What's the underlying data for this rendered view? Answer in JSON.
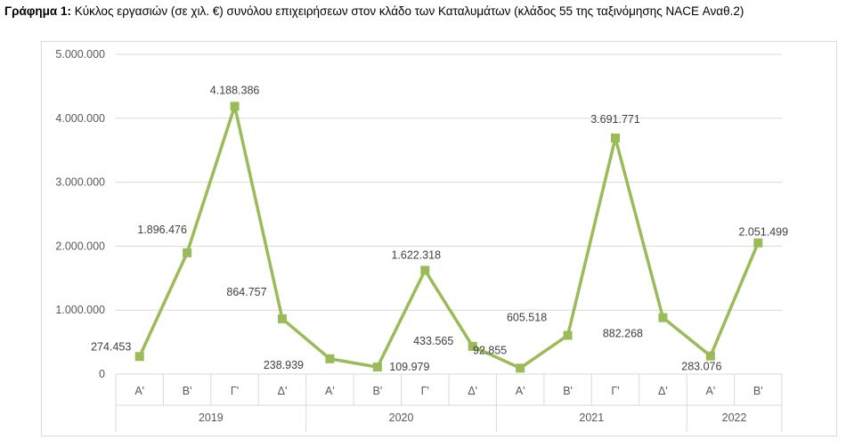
{
  "title": {
    "prefix": "Γράφημα 1:",
    "text": "Κύκλος εργασιών (σε χιλ. €) συνόλου επιχειρήσεων στον κλάδο των Καταλυμάτων (κλάδος 55 της ταξινόμησης NACE Αναθ.2)"
  },
  "chart_data": {
    "type": "line",
    "categories": [
      "Α'",
      "Β'",
      "Γ'",
      "Δ'",
      "Α'",
      "Β'",
      "Γ'",
      "Δ'",
      "Α'",
      "Β'",
      "Γ'",
      "Δ'",
      "Α'",
      "Β'"
    ],
    "groups": [
      {
        "label": "2019",
        "count": 4
      },
      {
        "label": "2020",
        "count": 4
      },
      {
        "label": "2021",
        "count": 4
      },
      {
        "label": "2022",
        "count": 2
      }
    ],
    "values": [
      274453,
      1896476,
      4188386,
      864757,
      238939,
      109979,
      1622318,
      433565,
      92855,
      605518,
      3691771,
      882268,
      283076,
      2051499
    ],
    "labels": [
      "274.453",
      "1.896.476",
      "4.188.386",
      "864.757",
      "238.939",
      "109.979",
      "1.622.318",
      "433.565",
      "92.855",
      "605.518",
      "3.691.771",
      "882.268",
      "283.076",
      "2.051.499"
    ],
    "yticks": [
      0,
      1000000,
      2000000,
      3000000,
      4000000,
      5000000
    ],
    "ytick_labels": [
      "0",
      "1.000.000",
      "2.000.000",
      "3.000.000",
      "4.000.000",
      "5.000.000"
    ],
    "ylim": [
      0,
      5000000
    ],
    "grid": true,
    "line_color": "#9bbb59"
  }
}
